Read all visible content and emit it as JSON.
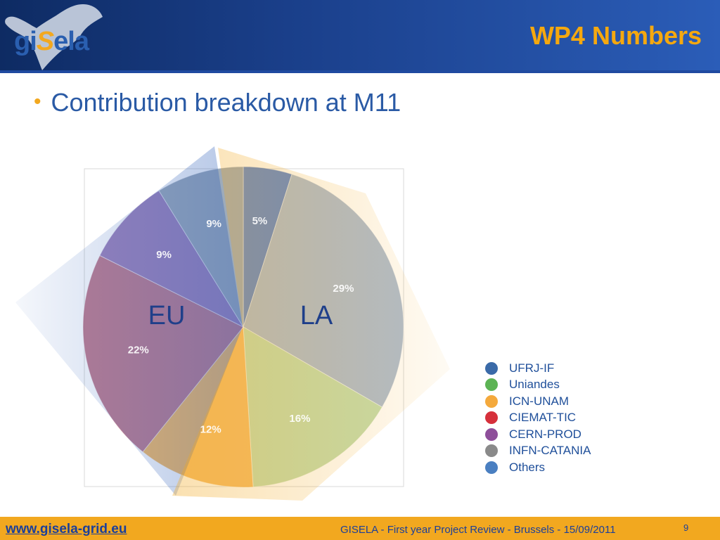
{
  "header": {
    "logo_prefix": "gi",
    "logo_s": "S",
    "logo_suffix": "ela",
    "title": "WP4 Numbers"
  },
  "bullet": {
    "marker": "•",
    "text": "Contribution breakdown at M11"
  },
  "chart_data": {
    "type": "pie",
    "slices": [
      {
        "name": "Others",
        "value": 5,
        "label": "5%",
        "color": "#4472c4"
      },
      {
        "name": "UFRJ-IF",
        "value": 29,
        "label": "29%",
        "color": "#9fb0c8"
      },
      {
        "name": "Uniandes",
        "value": 16,
        "label": "16%",
        "color": "#b8d6a0"
      },
      {
        "name": "ICN-UNAM",
        "value": 12,
        "label": "12%",
        "color": "#f3b04e"
      },
      {
        "name": "CIEMAT-TIC",
        "value": 22,
        "label": "22%",
        "color": "#b4677e"
      },
      {
        "name": "CERN-PROD",
        "value": 9,
        "label": "9%",
        "color": "#8d6fb0"
      },
      {
        "name": "INFN-CATANIA",
        "value": 9,
        "label": "9%",
        "color": "#8c9caf"
      }
    ],
    "group_labels": {
      "eu": "EU",
      "la": "LA"
    },
    "legend": [
      {
        "name": "UFRJ-IF",
        "color": "#3a6aa8"
      },
      {
        "name": "Uniandes",
        "color": "#5cb354"
      },
      {
        "name": "ICN-UNAM",
        "color": "#f4a93c"
      },
      {
        "name": "CIEMAT-TIC",
        "color": "#d6303b"
      },
      {
        "name": "CERN-PROD",
        "color": "#8e4f9a"
      },
      {
        "name": "INFN-CATANIA",
        "color": "#8a8a8a"
      },
      {
        "name": "Others",
        "color": "#4a7fc1"
      }
    ],
    "legend_position": "bottom-right"
  },
  "footer": {
    "url": "www.gisela-grid.eu",
    "text": "GISELA - First year Project Review - Brussels - 15/09/2011",
    "page": "9"
  }
}
